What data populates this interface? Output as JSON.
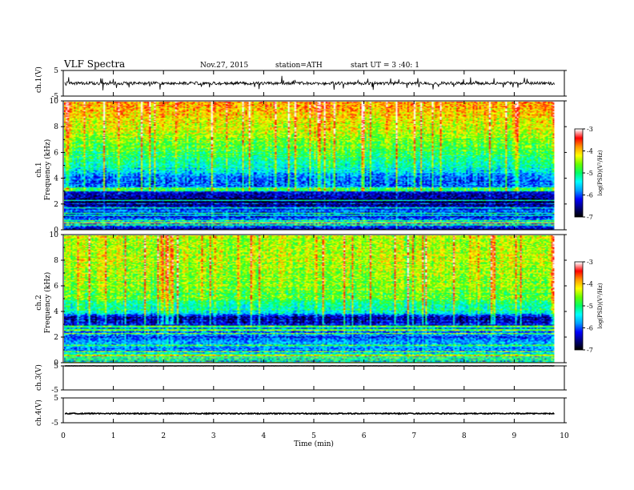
{
  "header": {
    "title": "VLF  Spectra",
    "date": "Nov.27, 2015",
    "station": "station=ATH",
    "start": "start  UT =   3  :40: 1"
  },
  "labels": {
    "ch1v": "ch.1(V)",
    "ch1_name": "ch.1",
    "ch2_name": "ch.2",
    "frequency": "Frequency  (kHz)",
    "ch3v": "ch.3(V)",
    "ch4v": "ch.4(V)",
    "xlabel": "Time  (min)",
    "colorbar": "log(PSD)(V²/Hz)"
  },
  "colors": {
    "trace": "#000000",
    "colormap": [
      "#000000",
      "#00007f",
      "#0000ff",
      "#00a0ff",
      "#00ffff",
      "#00ff66",
      "#66ff00",
      "#ffff00",
      "#ff9900",
      "#ff0000",
      "#ffffff"
    ]
  },
  "chart_data": [
    {
      "type": "line",
      "name": "ch.1 waveform",
      "ylabel": "ch.1(V)",
      "ylim": [
        -5,
        5
      ],
      "yticks": [
        "5",
        "-5"
      ],
      "xlim": [
        0,
        10
      ],
      "data_xmax": 9.8,
      "baseline": 0,
      "noise_amplitude": 0.6,
      "spike_amplitude": 2.5
    },
    {
      "type": "heatmap",
      "name": "ch.1 spectrogram",
      "ylabel": "Frequency  (kHz)",
      "ylim": [
        0,
        10
      ],
      "yticks": [
        "0",
        "2",
        "4",
        "6",
        "8",
        "10"
      ],
      "xlim": [
        0,
        10
      ],
      "data_xmax": 9.8,
      "colorbar": {
        "label": "log(PSD)(V²/Hz)",
        "range": [
          -7,
          -3
        ],
        "ticks": [
          "-3",
          "-4",
          "-5",
          "-6",
          "-7"
        ]
      },
      "profile": [
        {
          "f": 0.0,
          "v": -6.4
        },
        {
          "f": 0.5,
          "v": -5.6
        },
        {
          "f": 1.0,
          "v": -6.3
        },
        {
          "f": 1.5,
          "v": -5.9
        },
        {
          "f": 2.0,
          "v": -6.9
        },
        {
          "f": 2.5,
          "v": -6.6
        },
        {
          "f": 3.0,
          "v": -6.3
        },
        {
          "f": 3.5,
          "v": -5.9
        },
        {
          "f": 4.0,
          "v": -6.0
        },
        {
          "f": 5.0,
          "v": -5.2
        },
        {
          "f": 6.0,
          "v": -4.9
        },
        {
          "f": 7.0,
          "v": -4.6
        },
        {
          "f": 8.0,
          "v": -4.3
        },
        {
          "f": 9.0,
          "v": -4.0
        },
        {
          "f": 10.0,
          "v": -3.8
        }
      ]
    },
    {
      "type": "heatmap",
      "name": "ch.2 spectrogram",
      "ylabel": "Frequency  (kHz)",
      "ylim": [
        0,
        10
      ],
      "yticks": [
        "0",
        "2",
        "4",
        "6",
        "8",
        "10"
      ],
      "xlim": [
        0,
        10
      ],
      "data_xmax": 9.8,
      "colorbar": {
        "label": "log(PSD)(V²/Hz)",
        "range": [
          -7,
          -3
        ],
        "ticks": [
          "-3",
          "-4",
          "-5",
          "-6",
          "-7"
        ]
      },
      "profile": [
        {
          "f": 0.0,
          "v": -6.0
        },
        {
          "f": 0.5,
          "v": -5.4
        },
        {
          "f": 1.0,
          "v": -5.8
        },
        {
          "f": 1.5,
          "v": -5.6
        },
        {
          "f": 2.0,
          "v": -6.0
        },
        {
          "f": 2.5,
          "v": -5.8
        },
        {
          "f": 3.0,
          "v": -6.2
        },
        {
          "f": 3.5,
          "v": -6.5
        },
        {
          "f": 4.0,
          "v": -5.3
        },
        {
          "f": 5.0,
          "v": -4.8
        },
        {
          "f": 6.0,
          "v": -4.6
        },
        {
          "f": 7.0,
          "v": -4.5
        },
        {
          "f": 8.0,
          "v": -4.4
        },
        {
          "f": 9.0,
          "v": -4.4
        },
        {
          "f": 10.0,
          "v": -4.4
        }
      ]
    },
    {
      "type": "line",
      "name": "ch.3 waveform",
      "ylabel": "ch.3(V)",
      "ylim": [
        -5,
        5
      ],
      "yticks": [
        "5",
        "-5"
      ],
      "xlim": [
        0,
        10
      ],
      "data_xmax": 9.8,
      "baseline": 5,
      "noise_amplitude": 0.05
    },
    {
      "type": "line",
      "name": "ch.4 waveform",
      "ylabel": "ch.4(V)",
      "ylim": [
        -5,
        5
      ],
      "yticks": [
        "5",
        "-5"
      ],
      "xlim": [
        0,
        10
      ],
      "data_xmax": 9.8,
      "baseline": -1.3,
      "noise_amplitude": 0.2
    },
    {
      "type": "axis",
      "name": "time axis",
      "xlabel": "Time  (min)",
      "xlim": [
        0,
        10
      ],
      "xticks": [
        "0",
        "1",
        "2",
        "3",
        "4",
        "5",
        "6",
        "7",
        "8",
        "9",
        "10"
      ]
    }
  ]
}
